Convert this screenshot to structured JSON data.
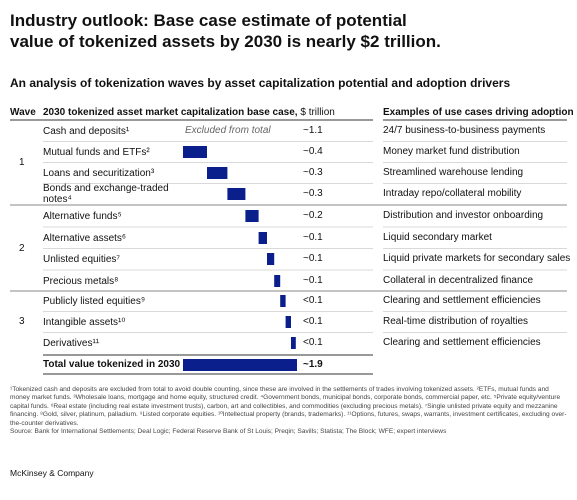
{
  "chart_data": {
    "type": "waterfall",
    "title": "Industry outlook: Base case estimate of potential value of tokenized assets by 2030 is nearly $2 trillion.",
    "subtitle": "An analysis of tokenization waves by asset capitalization potential and adoption drivers",
    "wave_header": "Wave",
    "value_header": "2030 tokenized asset market capitalization base case,",
    "unit": "$ trillion",
    "use_case_header": "Examples of use cases driving adoption",
    "waves": [
      "1",
      "2",
      "3"
    ],
    "categories": [
      "Cash and deposits¹",
      "Mutual funds and ETFs²",
      "Loans and securitization³",
      "Bonds and exchange-traded notes⁴",
      "Alternative funds⁵",
      "Alternative assets⁶",
      "Unlisted equities⁷",
      "Precious metals⁸",
      "Publicly listed equities⁹",
      "Intangible assets¹⁰",
      "Derivatives¹¹"
    ],
    "values": [
      1.1,
      0.4,
      0.34,
      0.3,
      0.22,
      0.14,
      0.12,
      0.1,
      0.09,
      0.09,
      0.08
    ],
    "value_labels": [
      "~1.1",
      "~0.4",
      "~0.3",
      "~0.3",
      "~0.2",
      "~0.1",
      "~0.1",
      "~0.1",
      "<0.1",
      "<0.1",
      "<0.1"
    ],
    "use_cases": [
      "24/7 business-to-business payments",
      "Money market fund distribution",
      "Streamlined warehouse lending",
      "Intraday repo/collateral mobility",
      "Distribution and investor onboarding",
      "Liquid secondary market",
      "Liquid private markets for secondary sales",
      "Collateral in decentralized finance",
      "Clearing and settlement efficiencies",
      "Real-time distribution of royalties",
      "Clearing and settlement efficiencies"
    ],
    "excluded_label": "Excluded from total",
    "total": {
      "label": "Total value tokenized in 2030",
      "value": 1.9,
      "value_label": "~1.9"
    },
    "color": "#0b1f8c",
    "footnotes": [
      "¹Tokenized cash and deposits are excluded from total to avoid double counting, since these are involved in the settlements of trades involving tokenized assets.",
      "²ETFs, mutual funds and money market funds.",
      "³Wholesale loans, mortgage and home equity, structured credit.",
      "⁴Government bonds, municipal bonds, corporate bonds, commercial paper, etc.",
      "⁵Private equity/venture capital funds.",
      "⁶Real estate (including real estate investment trusts), carbon, art and collectibles, and commodities (excluding precious metals).",
      "⁷Single unlisted private equity and mezzanine financing.",
      "⁸Gold, silver, platinum, palladium.",
      "⁹Listed corporate equities.",
      "¹⁰Intellectual property (brands, trademarks).",
      "¹¹Options, futures, swaps, warrants, investment certificates, excluding over-the-counter derivatives."
    ],
    "source": "Source: Bank for International Settlements; Deal Logic; Federal Reserve Bank of St Louis; Preqin; Savills; Statista; The Block; WFE; expert interviews",
    "brand": "McKinsey & Company"
  }
}
